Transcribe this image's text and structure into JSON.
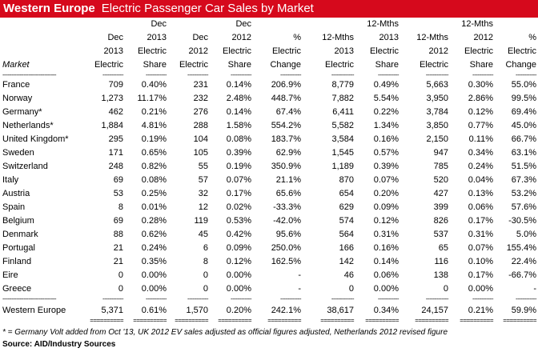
{
  "title": {
    "bold": "Western Europe",
    "rest": "Electric Passenger Car Sales by Market"
  },
  "header_rows": [
    [
      "",
      "",
      "Dec",
      "",
      "Dec",
      "",
      "",
      "12-Mths",
      "",
      "12-Mths",
      ""
    ],
    [
      "",
      "Dec",
      "2013",
      "Dec",
      "2012",
      "%",
      "12-Mths",
      "2013",
      "12-Mths",
      "2012",
      "%"
    ],
    [
      "",
      "2013",
      "Electric",
      "2012",
      "Electric",
      "Electric",
      "2013",
      "Electric",
      "2012",
      "Electric",
      "Electric"
    ],
    [
      "Market",
      "Electric",
      "Share",
      "Electric",
      "Share",
      "Change",
      "Electric",
      "Share",
      "Electric",
      "Share",
      "Change"
    ]
  ],
  "separator": [
    "-------------------------------",
    "------------",
    "------------",
    "------------",
    "------------",
    "------------",
    "-------------",
    "------------",
    "-------------",
    "------------",
    "------------"
  ],
  "double_separator": [
    "",
    "==========",
    "==========",
    "==========",
    "==========",
    "==========",
    "==========",
    "==========",
    "==========",
    "==========",
    "=========="
  ],
  "rows": [
    [
      "France",
      "709",
      "0.40%",
      "231",
      "0.14%",
      "206.9%",
      "8,779",
      "0.49%",
      "5,663",
      "0.30%",
      "55.0%"
    ],
    [
      "Norway",
      "1,273",
      "11.17%",
      "232",
      "2.48%",
      "448.7%",
      "7,882",
      "5.54%",
      "3,950",
      "2.86%",
      "99.5%"
    ],
    [
      "Germany*",
      "462",
      "0.21%",
      "276",
      "0.14%",
      "67.4%",
      "6,411",
      "0.22%",
      "3,784",
      "0.12%",
      "69.4%"
    ],
    [
      "Netherlands*",
      "1,884",
      "4.81%",
      "288",
      "1.58%",
      "554.2%",
      "5,582",
      "1.34%",
      "3,850",
      "0.77%",
      "45.0%"
    ],
    [
      "United Kingdom*",
      "295",
      "0.19%",
      "104",
      "0.08%",
      "183.7%",
      "3,584",
      "0.16%",
      "2,150",
      "0.11%",
      "66.7%"
    ],
    [
      "Sweden",
      "171",
      "0.65%",
      "105",
      "0.39%",
      "62.9%",
      "1,545",
      "0.57%",
      "947",
      "0.34%",
      "63.1%"
    ],
    [
      "Switzerland",
      "248",
      "0.82%",
      "55",
      "0.19%",
      "350.9%",
      "1,189",
      "0.39%",
      "785",
      "0.24%",
      "51.5%"
    ],
    [
      "Italy",
      "69",
      "0.08%",
      "57",
      "0.07%",
      "21.1%",
      "870",
      "0.07%",
      "520",
      "0.04%",
      "67.3%"
    ],
    [
      "Austria",
      "53",
      "0.25%",
      "32",
      "0.17%",
      "65.6%",
      "654",
      "0.20%",
      "427",
      "0.13%",
      "53.2%"
    ],
    [
      "Spain",
      "8",
      "0.01%",
      "12",
      "0.02%",
      "-33.3%",
      "629",
      "0.09%",
      "399",
      "0.06%",
      "57.6%"
    ],
    [
      "Belgium",
      "69",
      "0.28%",
      "119",
      "0.53%",
      "-42.0%",
      "574",
      "0.12%",
      "826",
      "0.17%",
      "-30.5%"
    ],
    [
      "Denmark",
      "88",
      "0.62%",
      "45",
      "0.42%",
      "95.6%",
      "564",
      "0.31%",
      "537",
      "0.31%",
      "5.0%"
    ],
    [
      "Portugal",
      "21",
      "0.24%",
      "6",
      "0.09%",
      "250.0%",
      "166",
      "0.16%",
      "65",
      "0.07%",
      "155.4%"
    ],
    [
      "Finland",
      "21",
      "0.35%",
      "8",
      "0.12%",
      "162.5%",
      "142",
      "0.14%",
      "116",
      "0.10%",
      "22.4%"
    ],
    [
      "Eire",
      "0",
      "0.00%",
      "0",
      "0.00%",
      "-",
      "46",
      "0.06%",
      "138",
      "0.17%",
      "-66.7%"
    ],
    [
      "Greece",
      "0",
      "0.00%",
      "0",
      "0.00%",
      "-",
      "0",
      "0.00%",
      "0",
      "0.00%",
      "-"
    ]
  ],
  "total": [
    "Western Europe",
    "5,371",
    "0.61%",
    "1,570",
    "0.20%",
    "242.1%",
    "38,617",
    "0.34%",
    "24,157",
    "0.21%",
    "59.9%"
  ],
  "note": "* = Germany Volt added from Oct '13, UK 2012 EV sales adjusted as official figures adjusted, Netherlands 2012 revised figure",
  "source": "Source: AID/Industry Sources"
}
